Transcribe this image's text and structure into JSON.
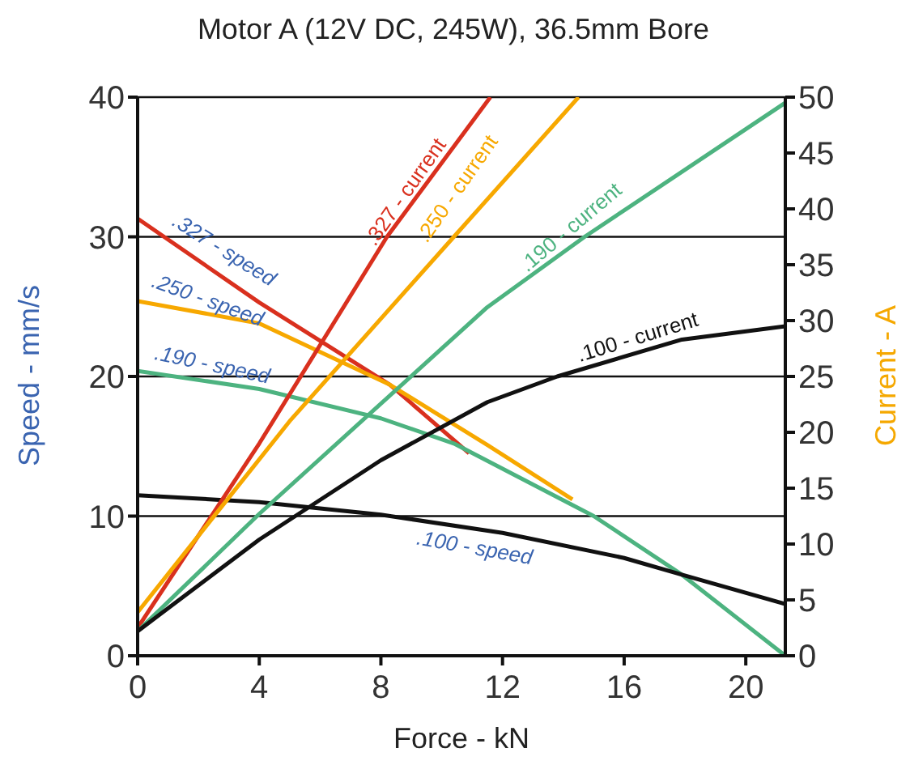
{
  "chart_data": {
    "type": "line",
    "title": "Motor A (12V DC, 245W), 36.5mm Bore",
    "xlabel": "Force - kN",
    "ylabel": "Speed - mm/s",
    "y2label": "Current - A",
    "xlim": [
      0,
      21.3
    ],
    "xticks": [
      0,
      4,
      8,
      12,
      16,
      20
    ],
    "ylim": [
      0,
      40
    ],
    "yticks": [
      0,
      10,
      20,
      30,
      40
    ],
    "y2lim": [
      0,
      50
    ],
    "y2ticks": [
      0,
      5,
      10,
      15,
      20,
      25,
      30,
      35,
      40,
      45,
      50
    ],
    "grid": "y",
    "marker": "none",
    "line_style": "solid",
    "series": [
      {
        "name": ".327 - speed",
        "color": "#d9301e",
        "x": [
          0,
          4,
          8.3,
          10.9
        ],
        "values": [
          31.3,
          25.3,
          19.4,
          14.5
        ]
      },
      {
        "name": ".250 - speed",
        "color": "#f7a800",
        "x": [
          0,
          4,
          8.3,
          11.5,
          14.3
        ],
        "values": [
          25.4,
          23.8,
          19.4,
          15.1,
          11.2
        ]
      },
      {
        "name": ".190 - speed",
        "color": "#4db380",
        "x": [
          0,
          4,
          8,
          10.4,
          15,
          17.9,
          21.3
        ],
        "values": [
          20.4,
          19.1,
          17,
          15.2,
          10,
          5.8,
          0
        ]
      },
      {
        "name": ".100 - speed",
        "color": "#111111",
        "x": [
          0,
          4,
          8,
          12,
          16,
          17.9,
          21.3
        ],
        "values": [
          11.5,
          11,
          10.1,
          8.8,
          7,
          5.8,
          3.7
        ]
      },
      {
        "name": ".327 - current",
        "color": "#d9301e",
        "axis": "y2",
        "x": [
          0,
          4,
          8.2,
          11.6
        ],
        "values": [
          2.5,
          19,
          37.5,
          50
        ]
      },
      {
        "name": ".250 - current",
        "color": "#f7a800",
        "axis": "y2",
        "x": [
          0,
          5,
          10.4,
          14.5
        ],
        "values": [
          3.9,
          21,
          37.5,
          50
        ]
      },
      {
        "name": ".190 - current",
        "color": "#4db380",
        "axis": "y2",
        "x": [
          0,
          4,
          11.5,
          14.7,
          21.3
        ],
        "values": [
          2.2,
          12.7,
          31.2,
          37.5,
          49.5
        ]
      },
      {
        "name": ".100 - current",
        "color": "#111111",
        "axis": "y2",
        "x": [
          0,
          4,
          8,
          11.5,
          13.8,
          17.9,
          21.3
        ],
        "values": [
          2.2,
          10.4,
          17.5,
          22.7,
          25,
          28.3,
          29.5
        ]
      }
    ]
  }
}
